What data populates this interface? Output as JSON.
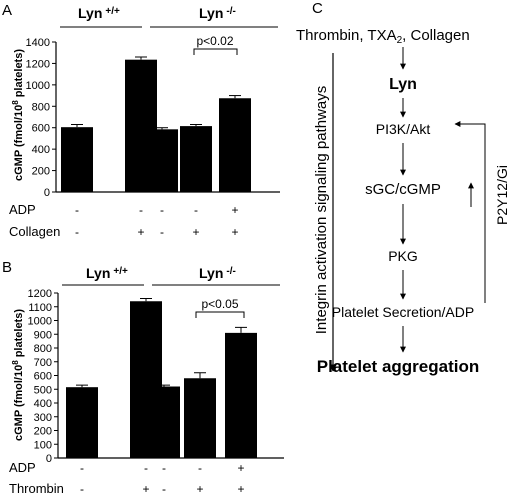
{
  "panels": {
    "A": {
      "letter": "A",
      "group1": "Lyn",
      "group1_sup": "+/+",
      "group2": "Lyn",
      "group2_sup": "-/-",
      "significance": "p<0.02",
      "row1_label": "ADP",
      "row1_marks": [
        "-",
        "-",
        "-",
        "-",
        "+"
      ],
      "row2_label": "Collagen",
      "row2_marks": [
        "-",
        "+",
        "-",
        "+",
        "+"
      ]
    },
    "B": {
      "letter": "B",
      "group1": "Lyn",
      "group1_sup": "+/+",
      "group2": "Lyn",
      "group2_sup": "-/-",
      "significance": "p<0.05",
      "row1_label": "ADP",
      "row1_marks": [
        "-",
        "-",
        "-",
        "-",
        "+"
      ],
      "row2_label": "Thrombin",
      "row2_marks": [
        "-",
        "+",
        "-",
        "+",
        "+"
      ]
    },
    "C": {
      "letter": "C",
      "agonists": "Thrombin, TXA",
      "agonists_sub": "2",
      "agonists_tail": ",  Collagen",
      "node_lyn": "Lyn",
      "node_pi3k": "PI3K/Akt",
      "node_sgc": "sGC/cGMP",
      "node_pkg": "PKG",
      "node_secretion": "Platelet Secretion/ADP",
      "node_aggregation": "Platelet aggregation",
      "left_pathway_label": "Integrin activation signaling pathways",
      "feedback_label": "P2Y12/Gi"
    }
  },
  "chart_data": [
    {
      "type": "bar",
      "panel": "A",
      "title": "",
      "xlabel": "",
      "ylabel": "cGMP (fmol/10^8 platelets)",
      "ylim": [
        0,
        1400
      ],
      "yticks": [
        0,
        200,
        400,
        600,
        800,
        1000,
        1200,
        1400
      ],
      "categories": [
        "1",
        "2",
        "3",
        "4",
        "5"
      ],
      "values": [
        605,
        1235,
        585,
        615,
        875
      ],
      "errors": [
        25,
        25,
        15,
        15,
        25
      ],
      "color": "#000000"
    },
    {
      "type": "bar",
      "panel": "B",
      "title": "",
      "xlabel": "",
      "ylabel": "cGMP (fmol/10^8 platelets)",
      "ylim": [
        0,
        1200
      ],
      "yticks": [
        0,
        100,
        200,
        300,
        400,
        500,
        600,
        700,
        800,
        900,
        1000,
        1100,
        1200
      ],
      "categories": [
        "1",
        "2",
        "3",
        "4",
        "5"
      ],
      "values": [
        515,
        1140,
        520,
        580,
        910
      ],
      "errors": [
        15,
        20,
        10,
        40,
        40
      ],
      "color": "#000000"
    }
  ]
}
